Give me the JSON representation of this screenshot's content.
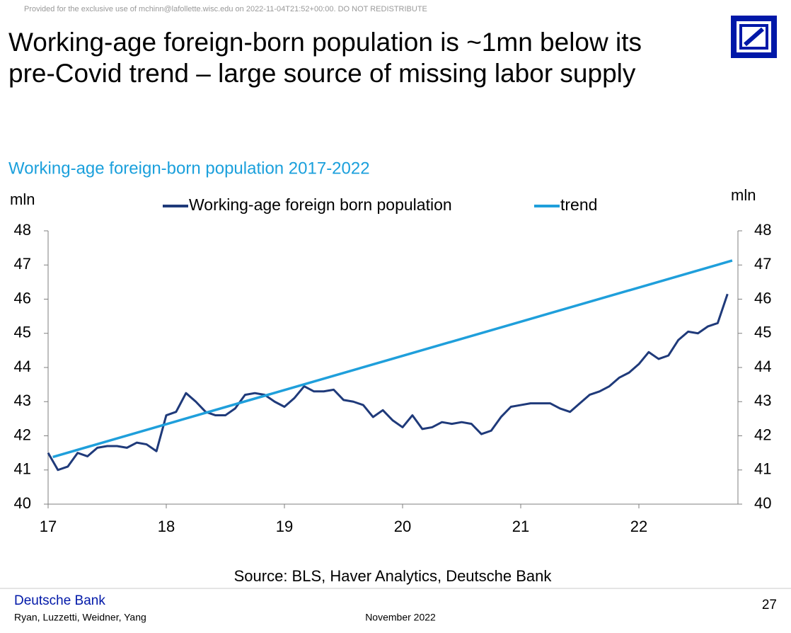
{
  "header": {
    "notice": "Provided for the exclusive use of mchinn@lafollette.wisc.edu on 2022-11-04T21:52+00:00. DO NOT REDISTRIBUTE",
    "title": [
      "Working-age foreign-born population is ~1mn below its",
      "pre-Covid trend – large source of missing labor supply"
    ]
  },
  "chart_data": {
    "type": "line",
    "title": "Working-age foreign-born population 2017-2022",
    "ylabel": "mln",
    "y2label": "mln",
    "x": [
      17,
      17.083,
      17.167,
      17.25,
      17.333,
      17.417,
      17.5,
      17.583,
      17.667,
      17.75,
      17.833,
      17.917,
      18,
      18.083,
      18.167,
      18.25,
      18.333,
      18.417,
      18.5,
      18.583,
      18.667,
      18.75,
      18.833,
      18.917,
      19,
      19.083,
      19.167,
      19.25,
      19.333,
      19.417,
      19.5,
      19.583,
      19.667,
      19.75,
      19.833,
      19.917,
      20,
      20.083,
      20.167,
      20.25,
      20.333,
      20.417,
      20.5,
      20.583,
      20.667,
      20.75,
      20.833,
      20.917,
      21,
      21.083,
      21.167,
      21.25,
      21.333,
      21.417,
      21.5,
      21.583,
      21.667,
      21.75,
      21.833,
      21.917,
      22,
      22.083,
      22.167,
      22.25,
      22.333,
      22.417,
      22.5,
      22.583,
      22.667,
      22.75
    ],
    "series": [
      {
        "name": "Working-age foreign born population",
        "color": "#1f3a7a",
        "values": [
          41.5,
          41.0,
          41.1,
          41.5,
          41.4,
          41.65,
          41.7,
          41.7,
          41.65,
          41.8,
          41.75,
          41.55,
          42.6,
          42.7,
          43.25,
          43.0,
          42.7,
          42.6,
          42.6,
          42.8,
          43.2,
          43.25,
          43.2,
          43.0,
          42.85,
          43.1,
          43.45,
          43.3,
          43.3,
          43.35,
          43.05,
          43.0,
          42.9,
          42.55,
          42.75,
          42.45,
          42.25,
          42.6,
          42.2,
          42.25,
          42.4,
          42.35,
          42.4,
          42.35,
          42.05,
          42.15,
          42.55,
          42.85,
          42.9,
          42.95,
          42.95,
          42.95,
          42.8,
          42.7,
          42.95,
          43.2,
          43.3,
          43.45,
          43.7,
          43.85,
          44.1,
          44.45,
          44.25,
          44.35,
          44.8,
          45.05,
          45.0,
          45.2,
          45.3,
          46.15
        ]
      },
      {
        "name": "trend",
        "color": "#1f9fdb",
        "x": [
          17.04,
          22.79
        ],
        "values": [
          41.38,
          47.13
        ]
      }
    ],
    "xlim": [
      17,
      22.83
    ],
    "xticks": [
      17,
      18,
      19,
      20,
      21,
      22
    ],
    "ylim": [
      40,
      48
    ],
    "yticks": [
      40,
      41,
      42,
      43,
      44,
      45,
      46,
      47,
      48
    ],
    "y2lim": [
      40,
      48
    ],
    "y2ticks": [
      40,
      41,
      42,
      43,
      44,
      45,
      46,
      47,
      48
    ],
    "legend": "top",
    "grid": false,
    "source": "Source: BLS, Haver Analytics, Deutsche Bank"
  },
  "footer": {
    "brand": "Deutsche Bank",
    "authors": "Ryan, Luzzetti, Weidner, Yang",
    "date": "November 2022",
    "page": "27"
  }
}
